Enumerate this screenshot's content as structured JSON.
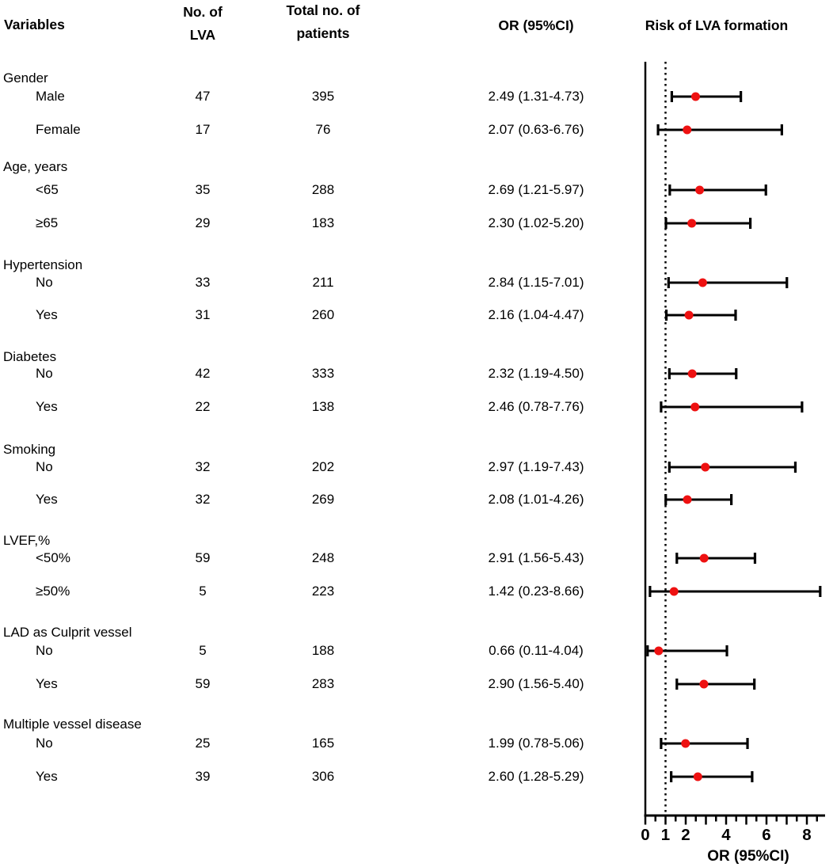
{
  "chart_data": {
    "type": "forest",
    "title": "Risk of LVA formation",
    "xlabel": "OR (95%CI)",
    "x_ticks": [
      0,
      1,
      2,
      4,
      6,
      8
    ],
    "x_range": [
      0,
      8.8
    ],
    "minor_tick_step": 0.5,
    "reference_line": 1,
    "grid": false,
    "headers": {
      "variables": "Variables",
      "n_lva": "No. of\nLVA",
      "total": "Total no. of\npatients",
      "or": "OR (95%CI)",
      "plot": "Risk of LVA formation"
    },
    "groups": [
      {
        "label": "Gender",
        "rows": [
          {
            "label": "Male",
            "n_lva": "47",
            "total": "395",
            "or_text": "2.49 (1.31-4.73)",
            "or": 2.49,
            "ci_low": 1.31,
            "ci_high": 4.73
          },
          {
            "label": "Female",
            "n_lva": "17",
            "total": "76",
            "or_text": "2.07 (0.63-6.76)",
            "or": 2.07,
            "ci_low": 0.63,
            "ci_high": 6.76
          }
        ]
      },
      {
        "label": "Age, years",
        "rows": [
          {
            "label": "<65",
            "n_lva": "35",
            "total": "288",
            "or_text": "2.69 (1.21-5.97)",
            "or": 2.69,
            "ci_low": 1.21,
            "ci_high": 5.97
          },
          {
            "label": "≥65",
            "n_lva": "29",
            "total": "183",
            "or_text": "2.30 (1.02-5.20)",
            "or": 2.3,
            "ci_low": 1.02,
            "ci_high": 5.2
          }
        ]
      },
      {
        "label": "Hypertension",
        "rows": [
          {
            "label": "No",
            "n_lva": "33",
            "total": "211",
            "or_text": "2.84 (1.15-7.01)",
            "or": 2.84,
            "ci_low": 1.15,
            "ci_high": 7.01
          },
          {
            "label": "Yes",
            "n_lva": "31",
            "total": "260",
            "or_text": "2.16 (1.04-4.47)",
            "or": 2.16,
            "ci_low": 1.04,
            "ci_high": 4.47
          }
        ]
      },
      {
        "label": "Diabetes",
        "rows": [
          {
            "label": "No",
            "n_lva": "42",
            "total": "333",
            "or_text": "2.32 (1.19-4.50)",
            "or": 2.32,
            "ci_low": 1.19,
            "ci_high": 4.5
          },
          {
            "label": "Yes",
            "n_lva": "22",
            "total": "138",
            "or_text": "2.46 (0.78-7.76)",
            "or": 2.46,
            "ci_low": 0.78,
            "ci_high": 7.76
          }
        ]
      },
      {
        "label": "Smoking",
        "rows": [
          {
            "label": "No",
            "n_lva": "32",
            "total": "202",
            "or_text": "2.97 (1.19-7.43)",
            "or": 2.97,
            "ci_low": 1.19,
            "ci_high": 7.43
          },
          {
            "label": "Yes",
            "n_lva": "32",
            "total": "269",
            "or_text": "2.08 (1.01-4.26)",
            "or": 2.08,
            "ci_low": 1.01,
            "ci_high": 4.26
          }
        ]
      },
      {
        "label": "LVEF,%",
        "rows": [
          {
            "label": "<50%",
            "n_lva": "59",
            "total": "248",
            "or_text": "2.91 (1.56-5.43)",
            "or": 2.91,
            "ci_low": 1.56,
            "ci_high": 5.43
          },
          {
            "label": "≥50%",
            "n_lva": "5",
            "total": "223",
            "or_text": "1.42 (0.23-8.66)",
            "or": 1.42,
            "ci_low": 0.23,
            "ci_high": 8.66
          }
        ]
      },
      {
        "label": "LAD as Culprit vessel",
        "rows": [
          {
            "label": "No",
            "n_lva": "5",
            "total": "188",
            "or_text": "0.66 (0.11-4.04)",
            "or": 0.66,
            "ci_low": 0.11,
            "ci_high": 4.04
          },
          {
            "label": "Yes",
            "n_lva": "59",
            "total": "283",
            "or_text": "2.90 (1.56-5.40)",
            "or": 2.9,
            "ci_low": 1.56,
            "ci_high": 5.4
          }
        ]
      },
      {
        "label": "Multiple vessel disease",
        "rows": [
          {
            "label": "No",
            "n_lva": "25",
            "total": "165",
            "or_text": "1.99 (0.78-5.06)",
            "or": 1.99,
            "ci_low": 0.78,
            "ci_high": 5.06
          },
          {
            "label": "Yes",
            "n_lva": "39",
            "total": "306",
            "or_text": "2.60 (1.28-5.29)",
            "or": 2.6,
            "ci_low": 1.28,
            "ci_high": 5.29
          }
        ]
      }
    ],
    "colors": {
      "marker": "#ee1111",
      "line": "#000000",
      "text": "#000000",
      "background": "#ffffff"
    }
  }
}
